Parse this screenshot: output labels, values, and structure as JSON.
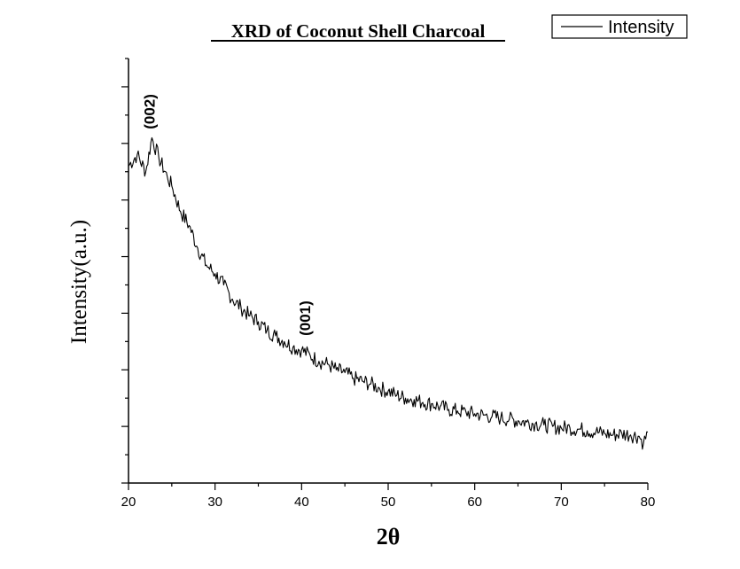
{
  "chart_data": {
    "type": "line",
    "title": "XRD of Coconut Shell Charcoal",
    "xlabel": "2θ",
    "ylabel": "Intensity(a.u.)",
    "xlim": [
      20,
      80
    ],
    "xticks": [
      20,
      30,
      40,
      50,
      60,
      70,
      80
    ],
    "ylim": [
      0,
      15
    ],
    "yticks_labeled": false,
    "grid": false,
    "legend": {
      "position": "top-right"
    },
    "series": [
      {
        "name": "Intensity",
        "color": "#000000",
        "x": [
          20,
          21,
          22,
          22.7,
          23.5,
          24.5,
          25,
          26,
          27,
          28,
          29,
          30,
          31,
          32,
          33,
          34,
          35,
          36,
          37,
          38,
          39,
          40,
          41,
          42,
          43,
          44,
          45,
          46,
          47,
          48,
          49,
          50,
          51,
          52,
          53,
          54,
          55,
          56,
          57,
          58,
          59,
          60,
          61,
          62,
          63,
          64,
          65,
          66,
          67,
          68,
          69,
          70,
          71,
          72,
          73,
          74,
          75,
          76,
          77,
          78,
          79,
          79.5,
          80
        ],
        "y": [
          11.2,
          11.6,
          11.0,
          12.2,
          11.5,
          10.8,
          10.5,
          9.6,
          9.1,
          8.3,
          7.7,
          7.4,
          7.0,
          6.5,
          6.2,
          5.9,
          5.7,
          5.4,
          5.2,
          5.0,
          4.8,
          4.7,
          4.5,
          4.3,
          4.2,
          4.0,
          3.9,
          3.7,
          3.6,
          3.5,
          3.35,
          3.25,
          3.1,
          3.0,
          2.95,
          2.85,
          2.8,
          2.7,
          2.6,
          2.55,
          2.5,
          2.45,
          2.4,
          2.35,
          2.3,
          2.25,
          2.2,
          2.15,
          2.1,
          2.05,
          2.0,
          1.95,
          1.95,
          1.9,
          1.85,
          1.8,
          1.75,
          1.7,
          1.75,
          1.7,
          1.65,
          1.4,
          1.8
        ]
      }
    ],
    "annotations": [
      {
        "text": "(002)",
        "x": 23,
        "y": 12.5
      },
      {
        "text": "(001)",
        "x": 41,
        "y": 5.2
      }
    ]
  }
}
